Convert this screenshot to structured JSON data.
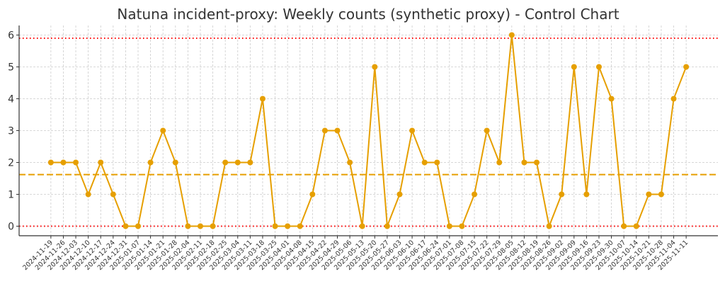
{
  "chart_data": {
    "type": "line",
    "title": "Natuna incident-proxy: Weekly counts (synthetic proxy) - Control Chart",
    "xlabel": "",
    "ylabel": "",
    "categories": [
      "2024-11-19",
      "2024-11-26",
      "2024-12-03",
      "2024-12-10",
      "2024-12-17",
      "2024-12-24",
      "2024-12-31",
      "2025-01-07",
      "2025-01-14",
      "2025-01-21",
      "2025-01-28",
      "2025-02-04",
      "2025-02-11",
      "2025-02-18",
      "2025-02-25",
      "2025-03-04",
      "2025-03-11",
      "2025-03-18",
      "2025-03-25",
      "2025-04-01",
      "2025-04-08",
      "2025-04-15",
      "2025-04-22",
      "2025-04-29",
      "2025-05-06",
      "2025-05-13",
      "2025-05-20",
      "2025-05-27",
      "2025-06-03",
      "2025-06-10",
      "2025-06-17",
      "2025-06-24",
      "2025-07-01",
      "2025-07-08",
      "2025-07-15",
      "2025-07-22",
      "2025-07-29",
      "2025-08-05",
      "2025-08-12",
      "2025-08-19",
      "2025-08-26",
      "2025-09-02",
      "2025-09-09",
      "2025-09-16",
      "2025-09-23",
      "2025-09-30",
      "2025-10-07",
      "2025-10-14",
      "2025-10-21",
      "2025-10-28",
      "2025-11-04",
      "2025-11-11"
    ],
    "values": [
      2,
      2,
      2,
      1,
      2,
      1,
      0,
      0,
      2,
      3,
      2,
      0,
      0,
      0,
      2,
      2,
      2,
      4,
      0,
      0,
      0,
      1,
      3,
      3,
      2,
      0,
      5,
      0,
      1,
      3,
      2,
      2,
      0,
      0,
      1,
      3,
      2,
      6,
      2,
      2,
      0,
      1,
      5,
      1,
      5,
      4,
      0,
      0,
      1,
      1,
      4,
      5
    ],
    "center_line": 1.62,
    "ucl": 5.9,
    "lcl": 0,
    "ylim": [
      -0.3,
      6.3
    ],
    "yticks": [
      0,
      1,
      2,
      3,
      4,
      5,
      6
    ],
    "grid": true,
    "colors": {
      "series": "#E69F00",
      "center": "#E69F00",
      "limits": "#FF0000",
      "grid": "#cccccc"
    }
  }
}
